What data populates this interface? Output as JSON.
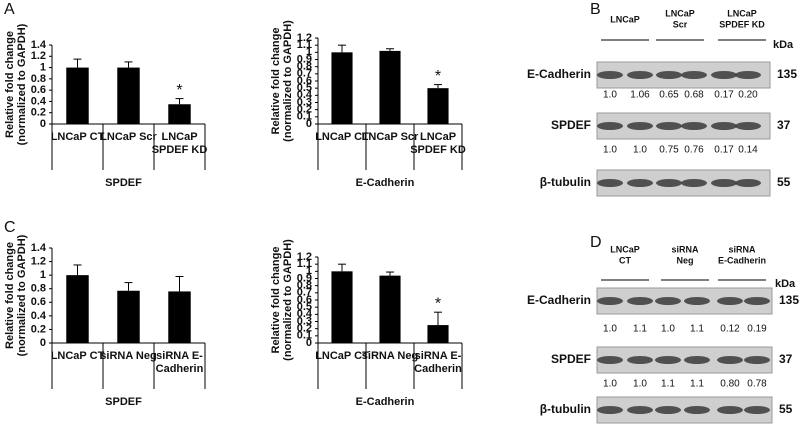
{
  "panel_labels": [
    "A",
    "B",
    "C",
    "D"
  ],
  "chart_data": [
    {
      "type": "bar",
      "ylabel": [
        "Relative fold change",
        "(normalized to GAPDH)"
      ],
      "xlabel": "SPDEF",
      "categories": [
        [
          "LNCaP CT"
        ],
        [
          "LNCaP Scr"
        ],
        [
          "LNCaP",
          "SPDEF KD"
        ]
      ],
      "values": [
        1.0,
        1.0,
        0.35
      ],
      "errors": [
        0.15,
        0.1,
        0.1
      ],
      "color": "#000000",
      "ylim": [
        0,
        1.4
      ],
      "yticks": [
        0,
        0.2,
        0.4,
        0.6,
        0.8,
        1,
        1.2,
        1.4
      ],
      "annotations": [
        {
          "text": "*",
          "at": 2
        }
      ]
    },
    {
      "type": "bar",
      "ylabel": [
        "Relative fold change",
        "(normalized to GAPDH)"
      ],
      "xlabel": "E-Cadherin",
      "categories": [
        [
          "LNCaP CT"
        ],
        [
          "LNCaP Scr"
        ],
        [
          "LNCaP",
          "SPDEF KD"
        ]
      ],
      "values": [
        1.0,
        1.02,
        0.5
      ],
      "errors": [
        0.1,
        0.03,
        0.05
      ],
      "color": "#000000",
      "ylim": [
        0,
        1.2
      ],
      "yticks": [
        0,
        0.1,
        0.2,
        0.3,
        0.4,
        0.5,
        0.6,
        0.7,
        0.8,
        0.9,
        1,
        1.1,
        1.2
      ],
      "annotations": [
        {
          "text": "*",
          "at": 2
        }
      ]
    },
    {
      "type": "bar",
      "ylabel": [
        "Relative fold change",
        "(normalized to GAPDH)"
      ],
      "xlabel": "SPDEF",
      "categories": [
        [
          "LNCaP CT"
        ],
        [
          "siRNA Neg"
        ],
        [
          "siRNA E-",
          "Cadherin"
        ]
      ],
      "values": [
        1.0,
        0.77,
        0.76
      ],
      "errors": [
        0.15,
        0.12,
        0.22
      ],
      "color": "#000000",
      "ylim": [
        0,
        1.4
      ],
      "yticks": [
        0,
        0.2,
        0.4,
        0.6,
        0.8,
        1,
        1.2,
        1.4
      ],
      "annotations": []
    },
    {
      "type": "bar",
      "ylabel": [
        "Relative fold change",
        "(normalized to GAPDH)"
      ],
      "xlabel": "E-Cadherin",
      "categories": [
        [
          "LNCaP CT"
        ],
        [
          "siRNA Neg"
        ],
        [
          "siRNA E-",
          "Cadherin"
        ]
      ],
      "values": [
        1.0,
        0.94,
        0.25
      ],
      "errors": [
        0.1,
        0.05,
        0.18
      ],
      "color": "#000000",
      "ylim": [
        0,
        1.2
      ],
      "yticks": [
        0,
        0.1,
        0.2,
        0.3,
        0.4,
        0.5,
        0.6,
        0.7,
        0.8,
        0.9,
        1,
        1.1,
        1.2
      ],
      "annotations": [
        {
          "text": "*",
          "at": 2
        }
      ]
    }
  ],
  "blots": [
    {
      "groups": [
        [
          "LNCaP"
        ],
        [
          "LNCaP",
          "Scr"
        ],
        [
          "LNCaP",
          "SPDEF KD"
        ]
      ],
      "unit": "kDa",
      "rows": [
        {
          "label": "E-Cadherin",
          "size": "135",
          "quant": [
            "1.0",
            "1.06",
            "0.65",
            "0.68",
            "0.17",
            "0.20"
          ]
        },
        {
          "label": "SPDEF",
          "size": "37",
          "quant": [
            "1.0",
            "1.0",
            "0.75",
            "0.76",
            "0.17",
            "0.14"
          ]
        },
        {
          "label": "β-tubulin",
          "size": "55",
          "quant": []
        }
      ]
    },
    {
      "groups": [
        [
          "LNCaP",
          "CT"
        ],
        [
          "siRNA",
          "Neg"
        ],
        [
          "siRNA",
          "E-Cadherin"
        ]
      ],
      "unit": "kDa",
      "rows": [
        {
          "label": "E-Cadherin",
          "size": "135",
          "quant": [
            "1.0",
            "1.1",
            "1.0",
            "1.1",
            "0.12",
            "0.19"
          ]
        },
        {
          "label": "SPDEF",
          "size": "37",
          "quant": [
            "1.0",
            "1.0",
            "1.1",
            "1.1",
            "0.80",
            "0.78"
          ]
        },
        {
          "label": "β-tubulin",
          "size": "55",
          "quant": []
        }
      ]
    }
  ]
}
